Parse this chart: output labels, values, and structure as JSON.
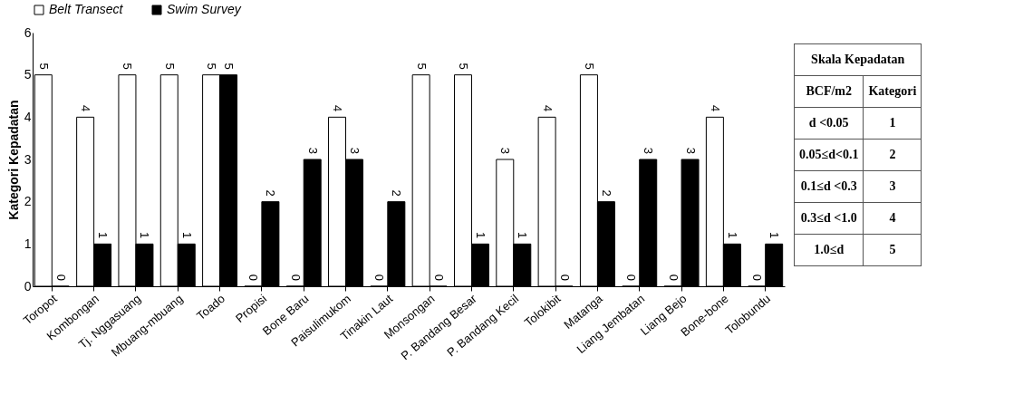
{
  "chart_data": {
    "type": "bar",
    "ylabel": "Kategori Kepadatan",
    "categories": [
      "Toropot",
      "Kombongan",
      "Tj. Nggasuang",
      "Mbuang-mbuang",
      "Toado",
      "Propisi",
      "Bone Baru",
      "Paisulimukom",
      "Tinakin Laut",
      "Monsongan",
      "P. Bandang Besar",
      "P. Bandang Kecil",
      "Tolokibit",
      "Matanga",
      "Liang Jembatan",
      "Liang Bejo",
      "Bone-bone",
      "Tolobundu"
    ],
    "series": [
      {
        "name": "Belt Transect",
        "color": "#ffffff",
        "values": [
          5,
          4,
          5,
          5,
          5,
          0,
          0,
          4,
          0,
          5,
          5,
          3,
          4,
          5,
          0,
          0,
          4,
          0
        ]
      },
      {
        "name": "Swim Survey",
        "color": "#000000",
        "values": [
          0,
          1,
          1,
          1,
          5,
          2,
          3,
          3,
          2,
          0,
          1,
          1,
          0,
          2,
          3,
          3,
          1,
          1
        ]
      }
    ],
    "ylim": [
      0,
      6
    ],
    "yticks": [
      0,
      1,
      2,
      3,
      4,
      5,
      6
    ],
    "grid": false,
    "legend": "top",
    "data_labels": true,
    "annotations": [
      "Skala Kepadatan",
      "BCF/m2",
      "Kategori",
      "d <0.05",
      "1",
      "0.05≤d<0.1",
      "2",
      "0.1≤d <0.3",
      "3",
      "0.3≤d <1.0",
      "4",
      "1.0≤d",
      "5"
    ]
  }
}
